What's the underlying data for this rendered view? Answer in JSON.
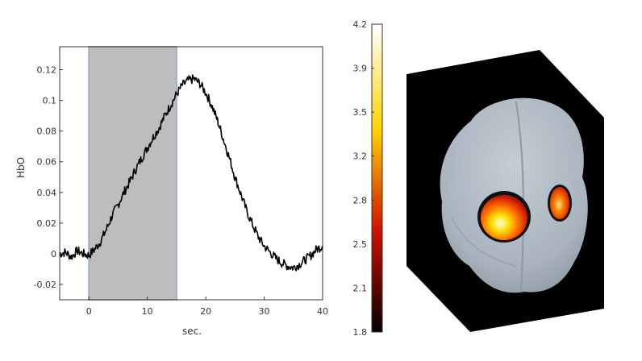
{
  "chart_data": [
    {
      "type": "line",
      "xlabel": "sec.",
      "ylabel": "HbO",
      "xlim": [
        -5,
        40
      ],
      "ylim": [
        -0.03,
        0.135
      ],
      "xticks": [
        0,
        10,
        20,
        30,
        40
      ],
      "yticks": [
        -0.02,
        0,
        0.02,
        0.04,
        0.06,
        0.08,
        0.1,
        0.12
      ],
      "grid": false,
      "shaded_interval": {
        "x": [
          0,
          15
        ],
        "color": "#bdbdbd",
        "edge_color": "#9fb0c8"
      },
      "series": [
        {
          "color": "#000000",
          "x": [
            -5,
            -4,
            -3,
            -2,
            -1,
            0,
            1,
            2,
            3,
            4,
            5,
            6,
            7,
            8,
            9,
            10,
            11,
            12,
            13,
            14,
            15,
            16,
            17,
            18,
            19,
            20,
            21,
            22,
            23,
            24,
            25,
            26,
            27,
            28,
            29,
            30,
            31,
            32,
            33,
            34,
            35,
            36,
            37,
            38,
            39,
            40
          ],
          "y": [
            0,
            0.001,
            -0.002,
            0.002,
            0,
            -0.001,
            0.003,
            0.008,
            0.016,
            0.025,
            0.032,
            0.04,
            0.047,
            0.055,
            0.062,
            0.069,
            0.076,
            0.082,
            0.09,
            0.097,
            0.104,
            0.11,
            0.113,
            0.114,
            0.111,
            0.105,
            0.097,
            0.087,
            0.075,
            0.063,
            0.05,
            0.039,
            0.028,
            0.019,
            0.011,
            0.005,
            0.001,
            -0.003,
            -0.006,
            -0.008,
            -0.009,
            -0.007,
            -0.004,
            -0.001,
            0.003,
            0.005
          ]
        }
      ]
    },
    {
      "type": "heatmap",
      "colorbar": {
        "ticks": [
          "4.2",
          "3.9",
          "3.5",
          "3.2",
          "2.8",
          "2.5",
          "2.1",
          "1.8"
        ],
        "min": 1.8,
        "max": 4.2,
        "colormap": "hot"
      },
      "brain_color": "#aab4be",
      "background_color": "#000000",
      "activations": [
        {
          "label": "left",
          "intensity": 4.2
        },
        {
          "label": "right",
          "intensity": 3.6
        }
      ]
    }
  ]
}
